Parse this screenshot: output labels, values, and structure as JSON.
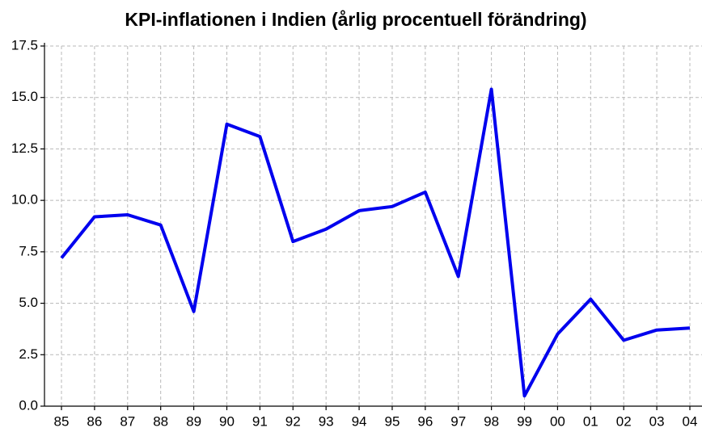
{
  "chart_data": {
    "type": "line",
    "title": "KPI-inflationen i Indien (årlig procentuell förändring)",
    "categories": [
      "85",
      "86",
      "87",
      "88",
      "89",
      "90",
      "91",
      "92",
      "93",
      "94",
      "95",
      "96",
      "97",
      "98",
      "99",
      "00",
      "01",
      "02",
      "03",
      "04"
    ],
    "series": [
      {
        "color": "#0000ee",
        "values": [
          7.2,
          9.2,
          9.3,
          8.8,
          4.6,
          13.7,
          13.1,
          8.0,
          8.6,
          9.5,
          9.7,
          10.4,
          6.3,
          15.4,
          0.5,
          3.5,
          5.2,
          3.2,
          3.7,
          3.8
        ]
      }
    ],
    "ylim": [
      0,
      17.5
    ],
    "yticks": [
      {
        "value": 0,
        "label": "0.0"
      },
      2.5,
      {
        "value": 5,
        "label": "5.0"
      },
      7.5,
      {
        "value": 10,
        "label": "10.0"
      },
      12.5,
      {
        "value": 15,
        "label": "15.0"
      },
      17.5
    ],
    "grid": true
  }
}
